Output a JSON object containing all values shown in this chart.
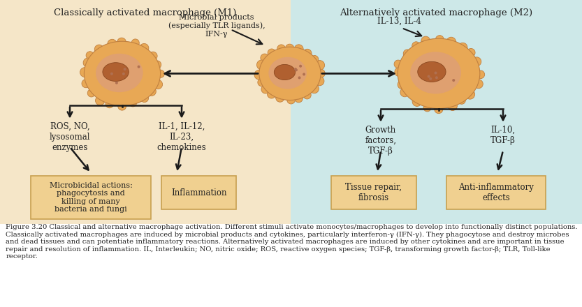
{
  "bg_left_color": "#f5e6c8",
  "bg_right_color": "#cde8e8",
  "title_left": "Classically activated macrophage (M1)",
  "title_right": "Alternatively activated macrophage (M2)",
  "box_fill": "#f0d090",
  "box_edge": "#c8a050",
  "caption_bold": "Figure 3.20",
  "caption_normal": " Classical and alternative macrophage activation. Different stimuli activate monocytes/macrophages to develop into functionally distinct populations. Classically activated macrophages are induced by microbial products and cytokines, particularly interferon-γ (IFN-γ). They phagocytose and destroy microbes and dead tissues and can potentiate inflammatory reactions. Alternatively activated macrophages are induced by other cytokines and are important in tissue repair and resolution of inflammation. ",
  "caption_italic1": "IL,",
  "caption_after1": " Interleukin; ",
  "caption_italic2": "NO,",
  "caption_after2": " nitric oxide; ",
  "caption_italic3": "ROS,",
  "caption_after3": " reactive oxygen species; ",
  "caption_italic4": "TGF-β,",
  "caption_after4": " transforming growth factor-β; ",
  "caption_italic5": "TLR,",
  "caption_after5": " Toll-like receptor.",
  "stimuli_label_m1": "Microbial products\n(especially TLR ligands),\nIFN-γ",
  "stimuli_label_m2": "IL-13, IL-4",
  "label_ros": "ROS, NO,\nlysosomal\nenzymes",
  "label_il1": "IL-1, IL-12,\nIL-23,\nchemokines",
  "label_growth": "Growth\nfactors,\nTGF-β",
  "label_il10": "IL-10,\nTGF-β",
  "box_microbicidal": "Microbicidal actions:\nphagocytosis and\nkilling of many\nbacteria and fungi",
  "box_inflammation": "Inflammation",
  "box_tissue": "Tissue repair,\nfibrosis",
  "box_antiinflam": "Anti-inflammatory\neffects",
  "arrow_color": "#1a1a1a",
  "text_color": "#222222",
  "macro_outer": "#e8a855",
  "macro_body": "#d4895a",
  "macro_inner": "#c87840",
  "macro_nucleus": "#b06030",
  "macro_edge": "#c08040"
}
